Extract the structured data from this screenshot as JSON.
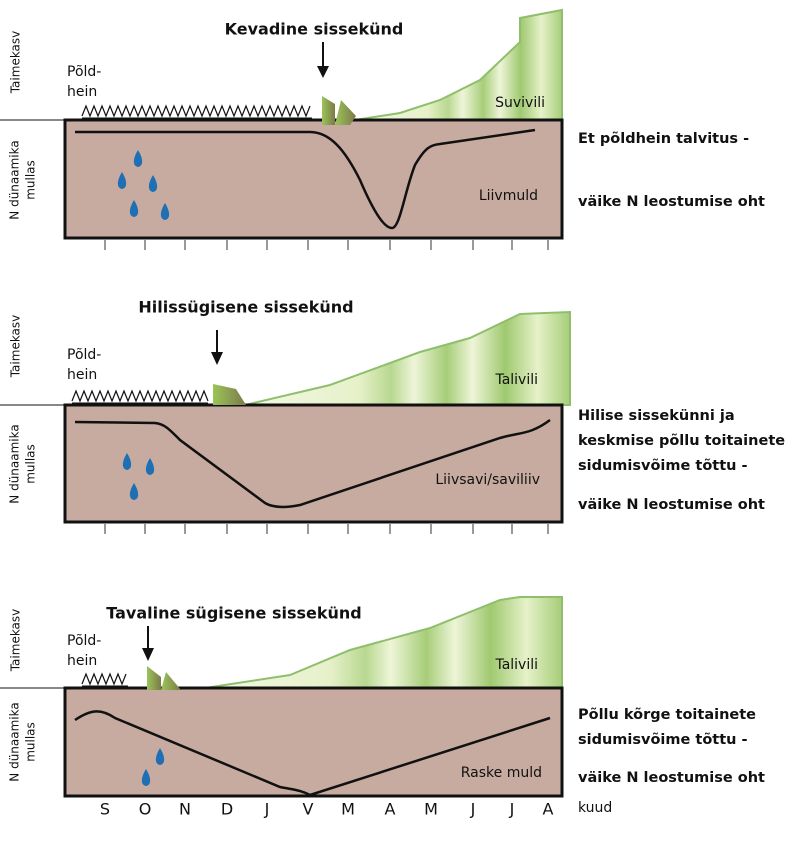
{
  "panels": [
    {
      "title": "Kevadine sissekünd",
      "growth_axis": "Taimekasv",
      "n_axis": [
        "N dünaamika",
        "mullas"
      ],
      "plant": [
        "Põld-",
        "hein"
      ],
      "crop": "Suvivili",
      "soil": "Liivmuld",
      "note": [
        "Et põldhein talvitus -",
        "väike N leostumise oht"
      ]
    },
    {
      "title": "Hilissügisene sissekünd",
      "growth_axis": "Taimekasv",
      "n_axis": [
        "N dünaamika",
        "mullas"
      ],
      "plant": [
        "Põld-",
        "hein"
      ],
      "crop": "Talivili",
      "soil": "Liivsavi/saviliiv",
      "note": [
        "Hilise sissekünni ja",
        "keskmise põllu toitainete",
        "sidumisvõime tõttu -",
        "väike N leostumise oht"
      ]
    },
    {
      "title": "Tavaline sügisene sissekünd",
      "growth_axis": "Taimekasv",
      "n_axis": [
        "N dünaamika",
        "mullas"
      ],
      "plant": [
        "Põld-",
        "hein"
      ],
      "crop": "Talivili",
      "soil": "Raske muld",
      "note": [
        "Põllu kõrge toitainete",
        "sidumisvõime tõttu -",
        "väike N leostumise oht"
      ]
    }
  ],
  "months": [
    "S",
    "O",
    "N",
    "D",
    "J",
    "V",
    "M",
    "A",
    "M",
    "J",
    "J",
    "A"
  ],
  "months_unit": "kuud"
}
